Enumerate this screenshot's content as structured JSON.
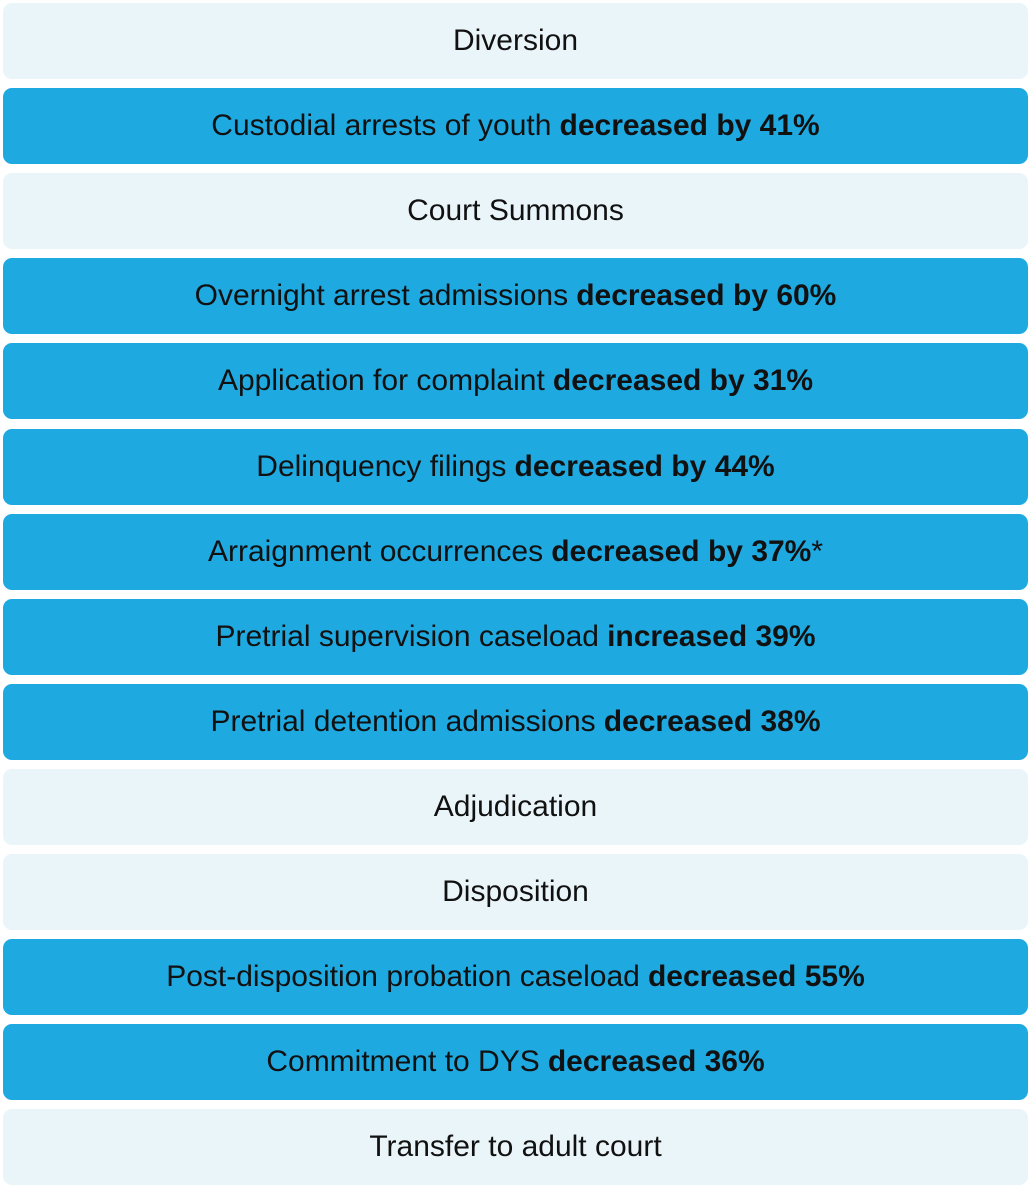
{
  "rows": [
    {
      "text": "Diversion",
      "color": "#eaf5fa"
    },
    {
      "text": "Custodial arrests of youth",
      "emphasis": "decreased by 41%",
      "color": "#1ea9e1"
    },
    {
      "text": "Court Summons",
      "color": "#eaf5fa"
    },
    {
      "text": "Overnight arrest admissions",
      "emphasis": "decreased by 60%",
      "color": "#1ea9e1"
    },
    {
      "text": "Application for complaint",
      "emphasis": "decreased by 31%",
      "color": "#1ea9e1"
    },
    {
      "text": "Delinquency filings",
      "emphasis": "decreased by 44%",
      "color": "#1ea9e1"
    },
    {
      "text": "Arraignment occurrences",
      "emphasis": "decreased by 37%",
      "suffix": "*",
      "color": "#1ea9e1"
    },
    {
      "text": "Pretrial supervision caseload",
      "emphasis": "increased 39%",
      "color": "#1ea9e1"
    },
    {
      "text": "Pretrial detention admissions",
      "emphasis": "decreased 38%",
      "color": "#1ea9e1"
    },
    {
      "text": "Adjudication",
      "color": "#eaf5fa"
    },
    {
      "text": "Disposition",
      "color": "#eaf5fa"
    },
    {
      "text": "Post-disposition probation caseload",
      "emphasis": "decreased 55%",
      "color": "#1ea9e1"
    },
    {
      "text": "Commitment to DYS",
      "emphasis": "decreased 36%",
      "color": "#1ea9e1"
    },
    {
      "text": "Transfer to adult court",
      "color": "#eaf5fa"
    }
  ]
}
